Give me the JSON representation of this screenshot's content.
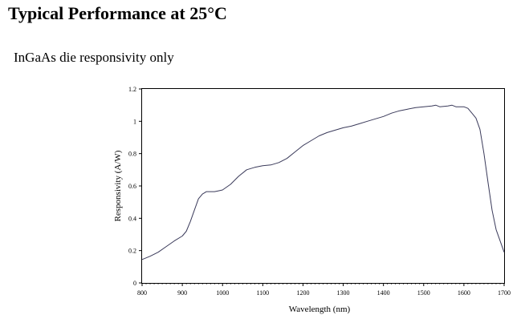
{
  "page": {
    "heading": "Typical Performance at 25°C",
    "subheading": "InGaAs die responsivity only"
  },
  "chart_data": {
    "type": "line",
    "title": "",
    "xlabel": "Wavelength (nm)",
    "ylabel": "Responsivity (A/W)",
    "xlim": [
      800,
      1700
    ],
    "ylim": [
      0,
      1.2
    ],
    "x_ticks": [
      800,
      900,
      1000,
      1100,
      1200,
      1300,
      1400,
      1500,
      1600,
      1700
    ],
    "y_ticks": [
      0,
      0.2,
      0.4,
      0.6,
      0.8,
      1,
      1.2
    ],
    "x_tick_labels": [
      "800",
      "900",
      "1000",
      "1100",
      "1200",
      "1300",
      "1400",
      "1500",
      "1600",
      "1700"
    ],
    "y_tick_labels": [
      "0",
      "0.2",
      "0.4",
      "0.6",
      "0.8",
      "1",
      "1.2"
    ],
    "grid": false,
    "line_color": "#3a3a5a",
    "series": [
      {
        "x": [
          800,
          820,
          840,
          860,
          880,
          900,
          910,
          920,
          930,
          940,
          950,
          960,
          970,
          980,
          990,
          1000,
          1020,
          1040,
          1060,
          1080,
          1100,
          1120,
          1140,
          1160,
          1180,
          1200,
          1220,
          1240,
          1260,
          1280,
          1300,
          1320,
          1340,
          1360,
          1380,
          1400,
          1420,
          1440,
          1460,
          1480,
          1500,
          1520,
          1530,
          1540,
          1560,
          1570,
          1580,
          1600,
          1610,
          1620,
          1630,
          1640,
          1650,
          1660,
          1670,
          1680,
          1690,
          1700
        ],
        "y": [
          0.145,
          0.165,
          0.19,
          0.225,
          0.26,
          0.29,
          0.32,
          0.38,
          0.45,
          0.52,
          0.55,
          0.565,
          0.565,
          0.565,
          0.57,
          0.575,
          0.61,
          0.66,
          0.7,
          0.715,
          0.725,
          0.73,
          0.745,
          0.77,
          0.81,
          0.85,
          0.88,
          0.91,
          0.93,
          0.945,
          0.96,
          0.97,
          0.985,
          1.0,
          1.015,
          1.03,
          1.05,
          1.065,
          1.075,
          1.085,
          1.09,
          1.095,
          1.1,
          1.09,
          1.095,
          1.1,
          1.09,
          1.09,
          1.08,
          1.05,
          1.02,
          0.95,
          0.8,
          0.62,
          0.45,
          0.33,
          0.26,
          0.19
        ]
      }
    ]
  }
}
